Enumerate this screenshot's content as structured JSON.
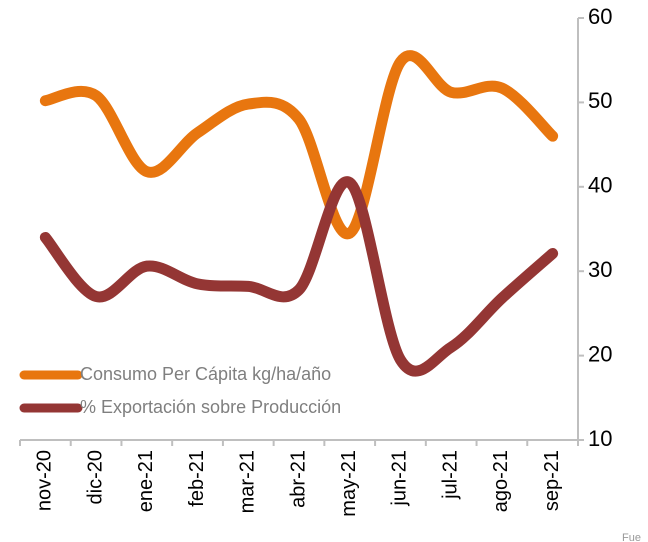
{
  "chart_data": {
    "type": "line",
    "categories": [
      "nov-20",
      "dic-20",
      "ene-21",
      "feb-21",
      "mar-21",
      "abr-21",
      "may-21",
      "jun-21",
      "jul-21",
      "ago-21",
      "sep-21"
    ],
    "series": [
      {
        "name": "Consumo Per Cápita kg/ha/año",
        "color": "#e8760f",
        "values": [
          50.2,
          50.8,
          41.8,
          46.4,
          49.8,
          48,
          34.5,
          54.8,
          51.2,
          51.7,
          46
        ]
      },
      {
        "name": "% Exportación sobre Producción",
        "color": "#943634",
        "values": [
          34,
          27,
          30.6,
          28.5,
          28.2,
          27.8,
          40.5,
          19.5,
          21,
          26.8,
          32.1
        ]
      }
    ],
    "ylim": [
      10,
      60
    ],
    "yticks": [
      10,
      20,
      30,
      40,
      50,
      60
    ],
    "grid": false,
    "legend": "bottom-left",
    "note": "Fue"
  }
}
